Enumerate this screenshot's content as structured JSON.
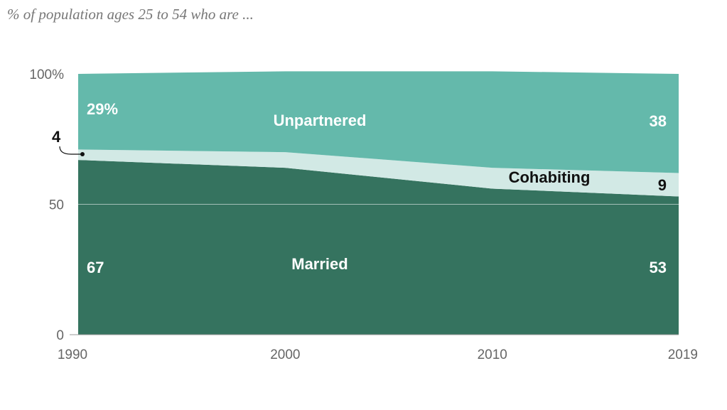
{
  "subtitle": "% of population ages 25 to 54 who are ...",
  "colors": {
    "married": "#35735f",
    "cohabiting": "#d2e9e5",
    "unpartnered": "#64b9ab",
    "axis": "#999999",
    "dark_text": "#111111",
    "light_text": "#ffffff"
  },
  "chart_data": {
    "type": "area",
    "stacked": true,
    "title": "",
    "subtitle": "% of population ages 25 to 54 who are ...",
    "xlabel": "",
    "ylabel": "",
    "x": [
      1990,
      2000,
      2010,
      2019
    ],
    "x_tick_labels": [
      "1990",
      "2000",
      "2010",
      "2019"
    ],
    "ylim": [
      0,
      100
    ],
    "y_ticks": [
      0,
      50,
      100
    ],
    "y_tick_labels": [
      "0",
      "50",
      "100%"
    ],
    "grid": true,
    "series": [
      {
        "name": "Married",
        "values": [
          67,
          64,
          56,
          53
        ]
      },
      {
        "name": "Cohabiting",
        "values": [
          4,
          6,
          8,
          9
        ]
      },
      {
        "name": "Unpartnered",
        "values": [
          29,
          31,
          37,
          38
        ]
      }
    ],
    "labels": {
      "married": "Married",
      "cohabiting": "Cohabiting",
      "unpartnered": "Unpartnered",
      "married_1990": "67",
      "married_2019": "53",
      "cohabiting_1990": "4",
      "cohabiting_2019": "9",
      "unpartnered_1990": "29%",
      "unpartnered_2019": "38"
    }
  }
}
